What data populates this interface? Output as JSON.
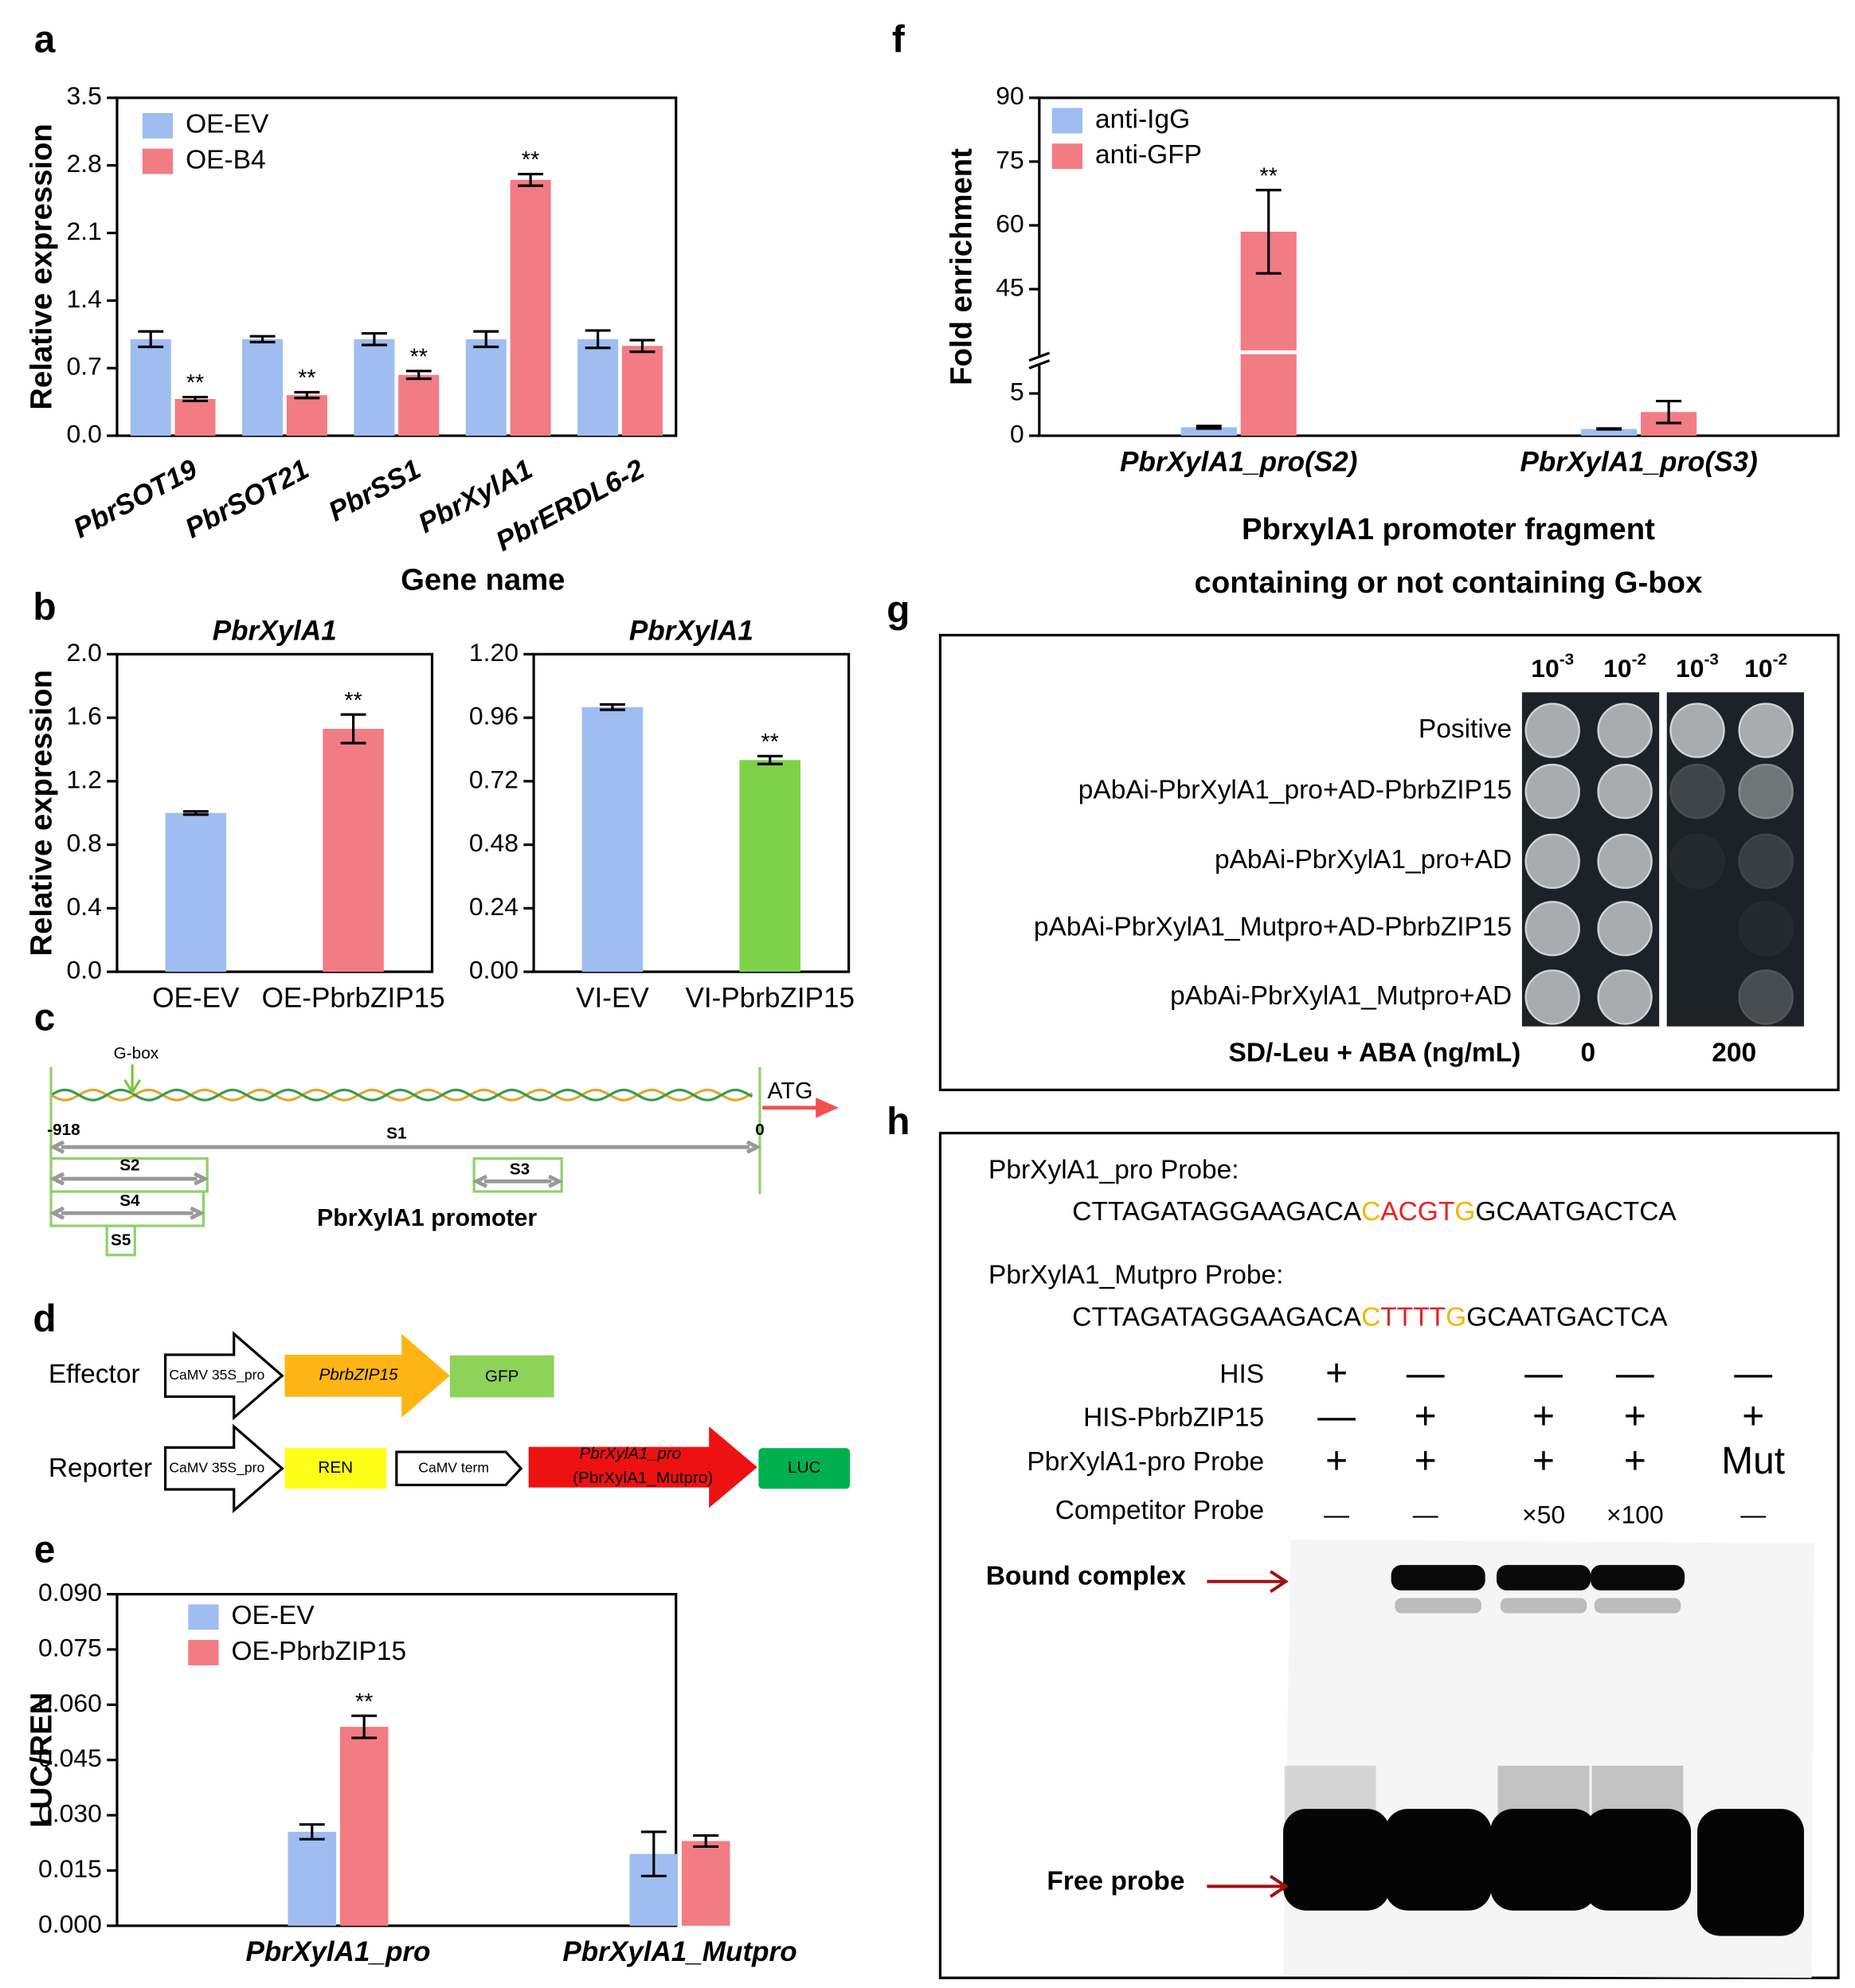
{
  "chart_data": [
    {
      "type": "bar",
      "ylabel": "Relative expression",
      "xlabel": "Gene name",
      "categories": [
        "PbrSOT19",
        "PbrSOT21",
        "PbrSS1",
        "PbrXylA1",
        "PbrERDL6-2"
      ],
      "series": [
        {
          "name": "OE-EV",
          "color": "#9fbdf0",
          "values": [
            1.0,
            1.0,
            1.0,
            1.0,
            1.0
          ],
          "errors": [
            0.08,
            0.03,
            0.06,
            0.08,
            0.09
          ]
        },
        {
          "name": "OE-B4",
          "color": "#f27c84",
          "values": [
            0.38,
            0.42,
            0.63,
            2.65,
            0.93
          ],
          "errors": [
            0.02,
            0.03,
            0.04,
            0.06,
            0.06
          ],
          "significance": [
            "**",
            "**",
            "**",
            "**",
            null
          ]
        }
      ],
      "ylim": [
        0,
        3.5
      ],
      "yticks": [
        {
          "value": 0,
          "label": "0.0"
        },
        0.7,
        1.4,
        2.1,
        2.8,
        3.5
      ],
      "legend": "upper left"
    },
    {
      "type": "bar",
      "title": "PbrXylA1",
      "ylabel": "Relative expression",
      "categories": [
        "OE-EV",
        "OE-PbrbZIP15"
      ],
      "values": [
        1.0,
        1.53
      ],
      "errors": [
        0.01,
        0.09
      ],
      "colors": [
        "#9fbdf0",
        "#f27c84"
      ],
      "significance": [
        null,
        "**"
      ],
      "ylim": [
        0,
        2
      ],
      "yticks": [
        {
          "value": 0,
          "label": "0.0"
        },
        0.4,
        0.8,
        1.2,
        1.6,
        {
          "value": 2,
          "label": "2.0"
        }
      ]
    },
    {
      "type": "bar",
      "title": "PbrXylA1",
      "categories": [
        "VI-EV",
        "VI-PbrbZIP15"
      ],
      "values": [
        1.0,
        0.8
      ],
      "errors": [
        0.01,
        0.015
      ],
      "colors": [
        "#9fbdf0",
        "#7ed24a"
      ],
      "significance": [
        null,
        "**"
      ],
      "ylim": [
        0,
        1.2
      ],
      "yticks": [
        {
          "value": 0,
          "label": "0.00"
        },
        0.24,
        0.48,
        0.72,
        0.96,
        {
          "value": 1.2,
          "label": "1.20"
        }
      ]
    },
    {
      "type": "bar",
      "ylabel": "LUC/REN",
      "categories": [
        "PbrXylA1_pro",
        "PbrXylA1_Mutpro"
      ],
      "series": [
        {
          "name": "OE-EV",
          "color": "#9fbdf0",
          "values": [
            0.0255,
            0.0195
          ],
          "errors": [
            0.002,
            0.006
          ]
        },
        {
          "name": "OE-PbrbZIP15",
          "color": "#f27c84",
          "values": [
            0.054,
            0.023
          ],
          "errors": [
            0.003,
            0.0015
          ],
          "significance": [
            "**",
            null
          ]
        }
      ],
      "ylim": [
        0,
        0.09
      ],
      "yticks": [
        {
          "value": 0,
          "label": "0.000"
        },
        0.015,
        {
          "value": 0.03,
          "label": "0.030"
        },
        0.045,
        {
          "value": 0.06,
          "label": "0.060"
        },
        0.075,
        {
          "value": 0.09,
          "label": "0.090"
        }
      ],
      "legend": "upper left"
    },
    {
      "type": "bar",
      "ylabel": "Fold enrichment",
      "xlabel": [
        "PbrxylA1 promoter fragment",
        "containing or not containing G-box"
      ],
      "categories": [
        "PbrXylA1_pro(S2)",
        "PbrXylA1_pro(S3)"
      ],
      "series": [
        {
          "name": "anti-IgG",
          "color": "#9fbdf0",
          "values": [
            1.0,
            0.8
          ],
          "errors": [
            0.15,
            0.05
          ]
        },
        {
          "name": "anti-GFP",
          "color": "#f27c84",
          "values": [
            58.5,
            2.8
          ],
          "errors": [
            9.8,
            1.3
          ],
          "significance": [
            "**",
            null
          ]
        }
      ],
      "ylim": [
        0,
        90
      ],
      "yticks": [
        0,
        5,
        45,
        60,
        75,
        90
      ],
      "ybreak": [
        8,
        30
      ],
      "legend": "upper left"
    }
  ],
  "panel_labels": [
    "a",
    "b",
    "c",
    "d",
    "e",
    "f",
    "g",
    "h"
  ],
  "promoter_diagram": {
    "gbox": "G-box",
    "start": "-918",
    "end": "0",
    "atg": "ATG",
    "fragments": [
      "S1",
      "S2",
      "S3",
      "S4",
      "S5"
    ],
    "caption": "PbrXylA1 promoter"
  },
  "constructs": {
    "effector": {
      "label": "Effector",
      "parts": [
        "CaMV 35S_pro",
        "PbrbZIP15",
        "GFP"
      ]
    },
    "reporter": {
      "label": "Reporter",
      "parts": [
        "CaMV 35S_pro",
        "REN",
        "CaMV term",
        "PbrXylA1_pro",
        "(PbrXylA1_Mutpro)",
        "LUC"
      ]
    }
  },
  "y1h": {
    "dilutions": [
      {
        "base": "10",
        "exp": "-3"
      },
      {
        "base": "10",
        "exp": "-2"
      },
      {
        "base": "10",
        "exp": "-3"
      },
      {
        "base": "10",
        "exp": "-2"
      }
    ],
    "rows": [
      "Positive",
      "pAbAi-PbrXylA1_pro+AD-PbrbZIP15",
      "pAbAi-PbrXylA1_pro+AD",
      "pAbAi-PbrXylA1_Mutpro+AD-PbrbZIP15",
      "pAbAi-PbrXylA1_Mutpro+AD"
    ],
    "medium": "SD/-Leu + ABA (ng/mL)",
    "conditions": [
      "0",
      "200"
    ]
  },
  "emsa": {
    "probes": [
      {
        "name": "PbrXylA1_pro Probe:",
        "segments": [
          {
            "text": "CTTAGATAGGAAGACA",
            "color": "#000000"
          },
          {
            "text": "C",
            "color": "#f5b400"
          },
          {
            "text": "ACGT",
            "color": "#e8231f"
          },
          {
            "text": "G",
            "color": "#f5b400"
          },
          {
            "text": "GCAATGACTCA",
            "color": "#000000"
          }
        ]
      },
      {
        "name": "PbrXylA1_Mutpro Probe:",
        "segments": [
          {
            "text": "CTTAGATAGGAAGACA",
            "color": "#000000"
          },
          {
            "text": "C",
            "color": "#f5b400"
          },
          {
            "text": "TTTT",
            "color": "#e8231f"
          },
          {
            "text": "G",
            "color": "#f5b400"
          },
          {
            "text": "GCAATGACTCA",
            "color": "#000000"
          }
        ]
      }
    ],
    "rows": [
      {
        "label": "HIS",
        "cells": [
          "+",
          "—",
          "—",
          "—",
          "—"
        ]
      },
      {
        "label": "HIS-PbrbZIP15",
        "cells": [
          "—",
          "+",
          "+",
          "+",
          "+"
        ]
      },
      {
        "label": "PbrXylA1-pro Probe",
        "cells": [
          "+",
          "+",
          "+",
          "+",
          "Mut"
        ]
      },
      {
        "label": "Competitor  Probe",
        "cells": [
          "—",
          "—",
          "×50",
          "×100",
          "—"
        ]
      }
    ],
    "bound": "Bound complex",
    "free": "Free probe"
  }
}
